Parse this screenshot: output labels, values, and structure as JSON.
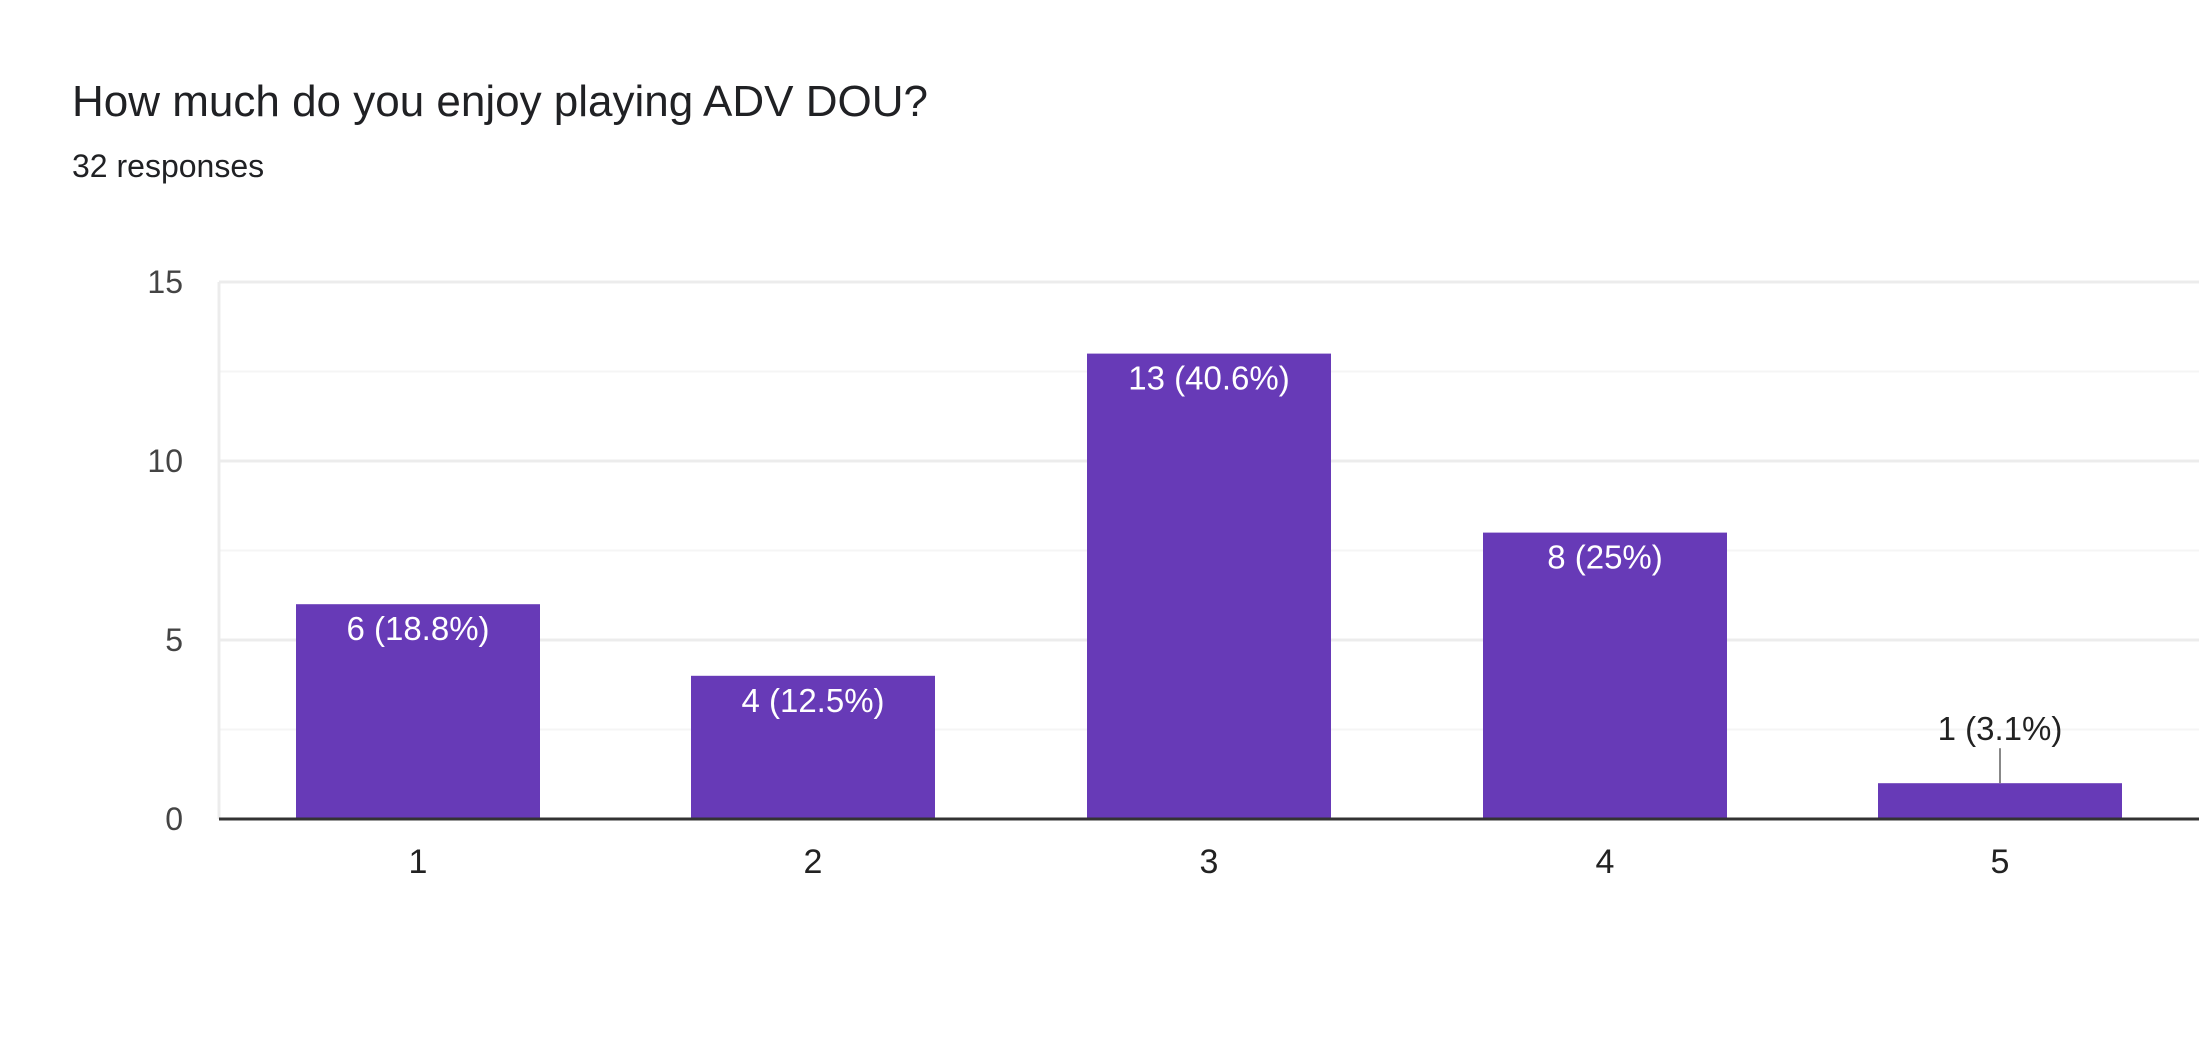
{
  "title": "How much do you enjoy playing ADV DOU?",
  "responses": "32 responses",
  "colors": {
    "bar": "#673ab7",
    "grid": "#ececec",
    "minor_grid": "#f5f5f5",
    "axis": "#333333",
    "label_inside": "#ffffff",
    "label_outside": "#222222"
  },
  "chart_data": {
    "type": "bar",
    "title": "How much do you enjoy playing ADV DOU?",
    "subtitle": "32 responses",
    "categories": [
      "1",
      "2",
      "3",
      "4",
      "5"
    ],
    "values": [
      6,
      4,
      13,
      8,
      1
    ],
    "labels": [
      "6 (18.8%)",
      "4 (12.5%)",
      "13 (40.6%)",
      "8 (25%)",
      "1 (3.1%)"
    ],
    "ylim": [
      0,
      15
    ],
    "yticks": [
      0,
      5,
      10,
      15
    ],
    "grid": true,
    "xlabel": "",
    "ylabel": ""
  }
}
